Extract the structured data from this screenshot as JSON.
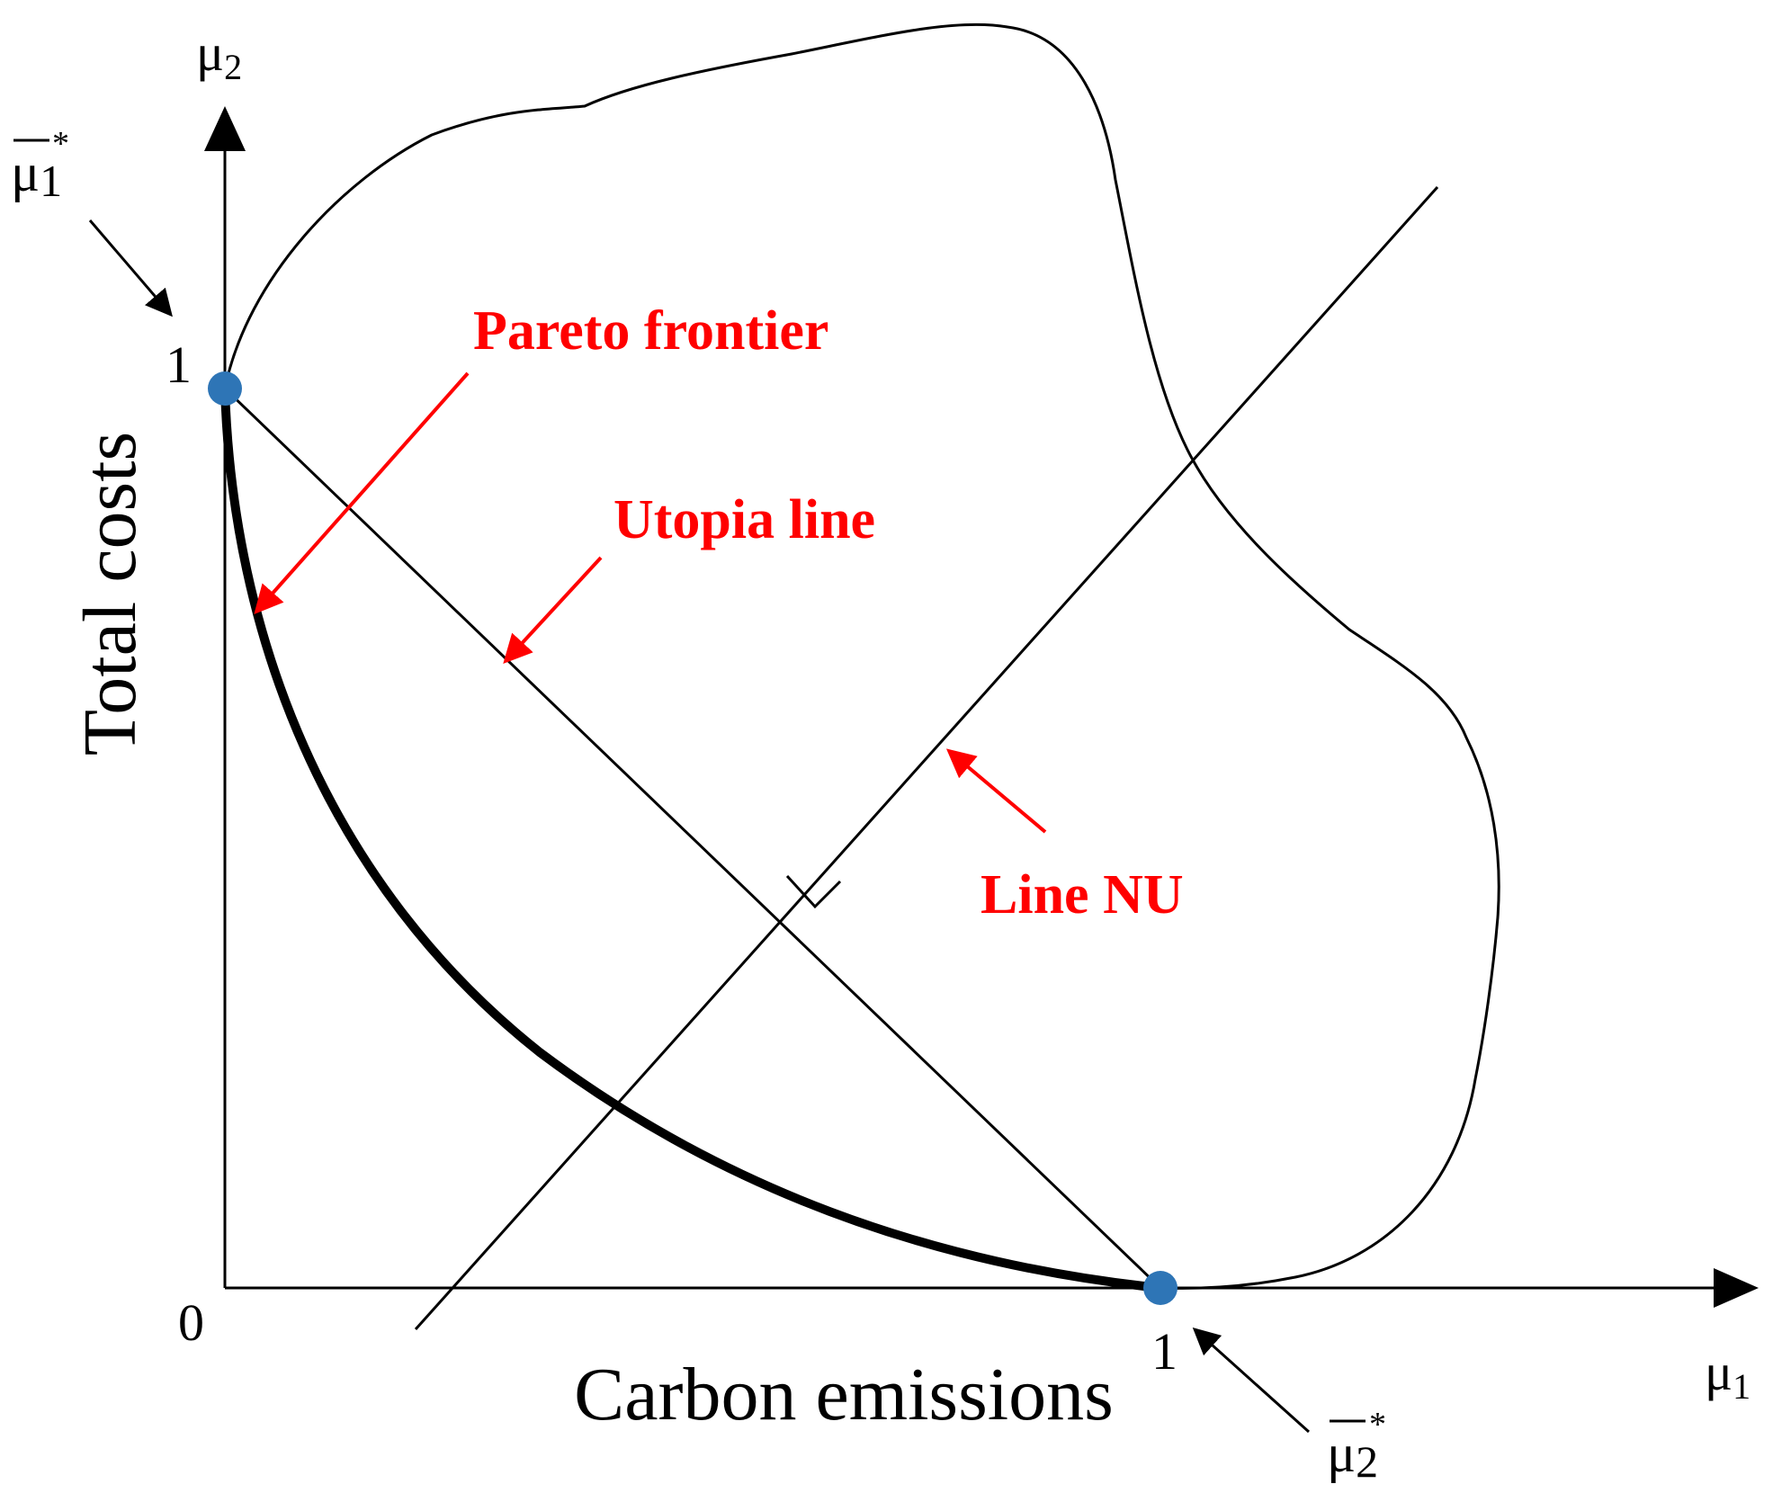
{
  "axes": {
    "y_axis_symbol": "μ",
    "y_axis_subscript": "2",
    "x_axis_symbol": "μ",
    "x_axis_subscript": "1",
    "y_axis_label": "Total costs",
    "x_axis_label": "Carbon emissions",
    "origin_tick": "0",
    "y_tick_one": "1",
    "x_tick_one": "1"
  },
  "anchor_points": {
    "top": {
      "symbol": "μ",
      "subscript": "1",
      "superscript": "*"
    },
    "bottom": {
      "symbol": "μ",
      "subscript": "2",
      "superscript": "*"
    }
  },
  "annotations": {
    "pareto_frontier": "Pareto frontier",
    "utopia_line": "Utopia line",
    "line_nu": "Line NU"
  },
  "colors": {
    "annotation": "#ff0000",
    "point": "#2e75b6",
    "line": "#000000"
  }
}
